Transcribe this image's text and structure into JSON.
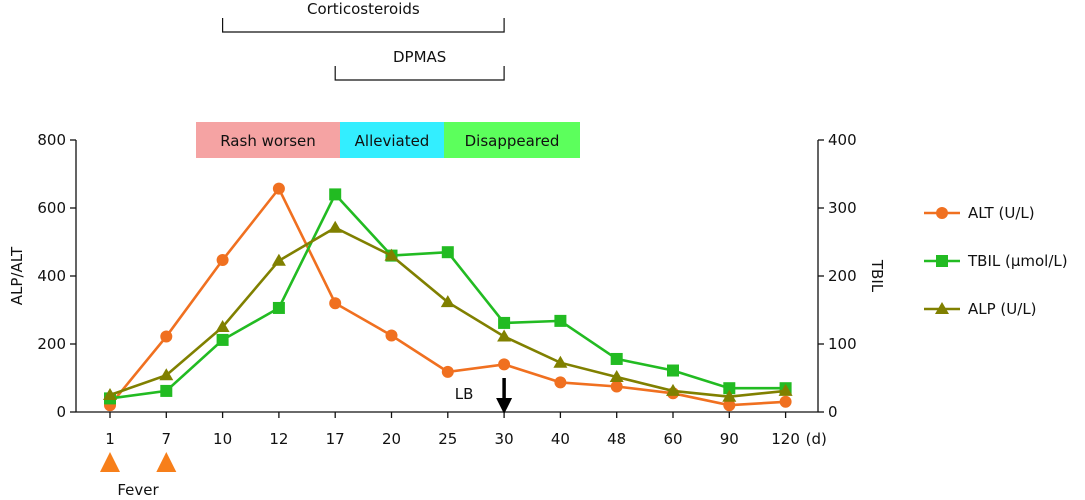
{
  "chart_data": {
    "type": "line",
    "categories": [
      "1",
      "7",
      "10",
      "12",
      "17",
      "20",
      "25",
      "30",
      "40",
      "48",
      "60",
      "90",
      "120"
    ],
    "x_unit": "(d)",
    "y_left": {
      "label": "ALP/ALT",
      "ticks": [
        "0",
        "200",
        "400",
        "600",
        "800"
      ],
      "range": [
        0,
        800
      ]
    },
    "y_right": {
      "label": "TBIL",
      "ticks": [
        "0",
        "100",
        "200",
        "300",
        "400"
      ],
      "range": [
        0,
        400
      ]
    },
    "series": [
      {
        "name": "ALT (U/L)",
        "axis": "left",
        "marker": "circle",
        "color": "#F07020",
        "values": [
          20,
          222,
          447,
          657,
          320,
          225,
          118,
          140,
          87,
          75,
          55,
          20,
          30
        ]
      },
      {
        "name": "TBIL (μmol/L)",
        "axis": "right",
        "marker": "square",
        "color": "#22BB22",
        "values": [
          20,
          31,
          106,
          153,
          320,
          230,
          235,
          131,
          134,
          78,
          61,
          35,
          35
        ]
      },
      {
        "name": "ALP (U/L)",
        "axis": "left",
        "marker": "triangle",
        "color": "#808000",
        "values": [
          50,
          108,
          250,
          445,
          542,
          460,
          323,
          222,
          145,
          103,
          62,
          45,
          62
        ]
      }
    ],
    "brackets": [
      {
        "label": "Corticosteroids",
        "from": "10",
        "to": "30"
      },
      {
        "label": "DPMAS",
        "from": "17",
        "to": "30"
      }
    ],
    "phases": [
      {
        "label": "Rash worsen",
        "color": "#F5A3A3"
      },
      {
        "label": "Alleviated",
        "color": "#33EEFF"
      },
      {
        "label": "Disappeared",
        "color": "#5CFF5C"
      }
    ],
    "annotations": [
      {
        "label": "LB",
        "day": "30"
      },
      {
        "label": "Fever",
        "days": [
          "1",
          "7"
        ],
        "color": "#F77F1A"
      }
    ],
    "legend_position": "right",
    "grid": false
  }
}
